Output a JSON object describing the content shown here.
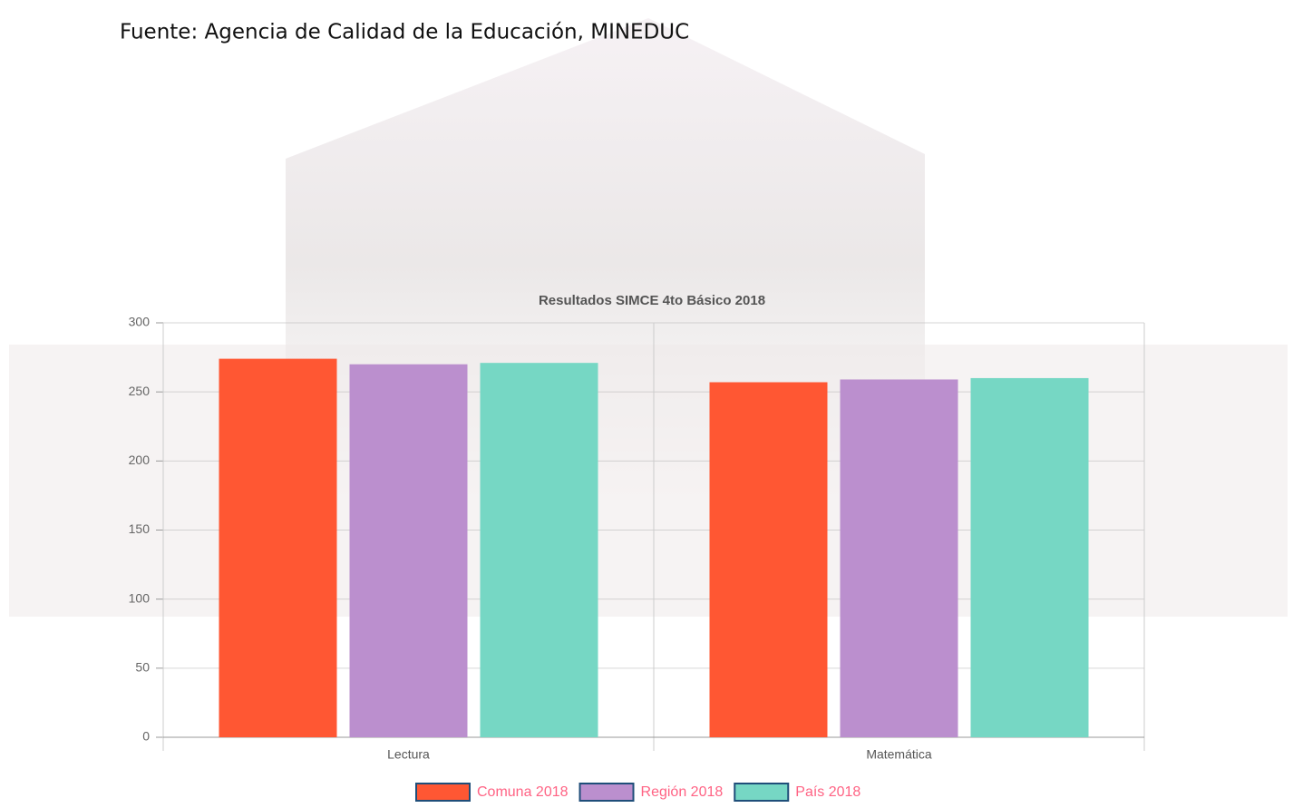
{
  "source": "Fuente: Agencia de Calidad de la Educación, MINEDUC",
  "chart_data": {
    "type": "bar",
    "title": "Resultados SIMCE 4to Básico 2018",
    "categories": [
      "Lectura",
      "Matemática"
    ],
    "series": [
      {
        "name": "Comuna 2018",
        "color": "#ff5733",
        "values": [
          274,
          257
        ]
      },
      {
        "name": "Región 2018",
        "color": "#bb8fce",
        "values": [
          270,
          259
        ]
      },
      {
        "name": "País 2018",
        "color": "#76d7c4",
        "values": [
          271,
          260
        ]
      }
    ],
    "ylim": [
      0,
      300
    ],
    "yticks": [
      0,
      50,
      100,
      150,
      200,
      250,
      300
    ],
    "grid": true,
    "legend": "bottom"
  }
}
